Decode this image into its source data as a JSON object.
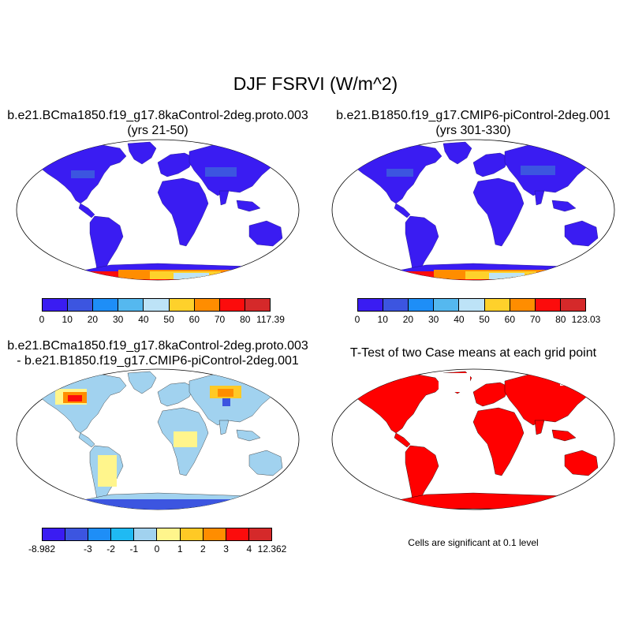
{
  "title": "DJF FSRVI (W/m^2)",
  "panels": {
    "top_left": {
      "title_line1": "b.e21.BCma1850.f19_g17.8kaControl-2deg.proto.003",
      "title_line2": "(yrs 21-50)",
      "colorbar": {
        "colors": [
          "#3a1cf2",
          "#3c55e0",
          "#1e8ef7",
          "#55b8ef",
          "#bde3f7",
          "#fed12b",
          "#ff8d00",
          "#fc0c0c",
          "#d5292a"
        ],
        "ticks": [
          "0",
          "10",
          "20",
          "30",
          "40",
          "50",
          "60",
          "70",
          "80",
          "117.39"
        ]
      }
    },
    "top_right": {
      "title_line1": "b.e21.B1850.f19_g17.CMIP6-piControl-2deg.001",
      "title_line2": "(yrs 301-330)",
      "colorbar": {
        "colors": [
          "#3a1cf2",
          "#3c55e0",
          "#1e8ef7",
          "#55b8ef",
          "#bde3f7",
          "#fed12b",
          "#ff8d00",
          "#fc0c0c",
          "#d5292a"
        ],
        "ticks": [
          "0",
          "10",
          "20",
          "30",
          "40",
          "50",
          "60",
          "70",
          "80",
          "123.03"
        ]
      }
    },
    "bottom_left": {
      "title_line1": "b.e21.BCma1850.f19_g17.8kaControl-2deg.proto.003",
      "title_line2": "- b.e21.B1850.f19_g17.CMIP6-piControl-2deg.001",
      "colorbar": {
        "colors": [
          "#3a1cf2",
          "#3c55e0",
          "#1e8ef7",
          "#1fbaf3",
          "#a1d2ef",
          "#fff58c",
          "#ffc925",
          "#ff8d00",
          "#fc0c0c",
          "#d5292a"
        ],
        "ticks": [
          "-8.982",
          "",
          "-3",
          "-2",
          "-1",
          "0",
          "1",
          "2",
          "3",
          "4",
          "12.362"
        ]
      }
    },
    "bottom_right": {
      "title": "T-Test of two Case means at each grid point",
      "note": "Cells are significant at 0.1 level",
      "color": "#ff0000"
    }
  }
}
